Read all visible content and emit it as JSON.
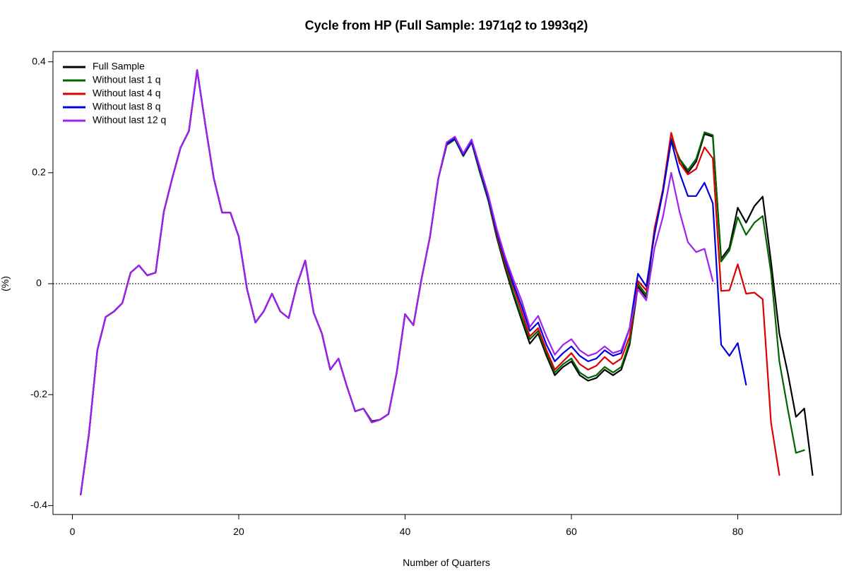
{
  "chart_data": {
    "type": "line",
    "title": "Cycle from HP (Full Sample: 1971q2 to 1993q2)",
    "xlabel": "Number of Quarters",
    "ylabel": "(%)",
    "xlim": [
      0,
      92
    ],
    "ylim": [
      -0.42,
      0.42
    ],
    "xticks": [
      0,
      20,
      40,
      60,
      80
    ],
    "yticks": [
      -0.4,
      -0.2,
      0,
      0.2,
      0.4
    ],
    "xtick_labels": [
      "0",
      "20",
      "40",
      "60",
      "80"
    ],
    "ytick_labels": [
      "-0.4",
      "-0.2",
      "0",
      "0.2",
      "0.4"
    ],
    "reference_line": {
      "y": 0,
      "style": "dotted"
    },
    "legend_position": "top-left",
    "series": [
      {
        "name": "Full Sample",
        "color": "#000000",
        "x_start": 1,
        "values": [
          -0.38,
          -0.27,
          -0.12,
          -0.06,
          -0.05,
          -0.035,
          0.02,
          0.033,
          0.015,
          0.02,
          0.13,
          0.19,
          0.245,
          0.275,
          0.385,
          0.285,
          0.19,
          0.128,
          0.128,
          0.085,
          -0.01,
          -0.07,
          -0.05,
          -0.018,
          -0.05,
          -0.062,
          -0.002,
          0.042,
          -0.052,
          -0.09,
          -0.155,
          -0.135,
          -0.185,
          -0.23,
          -0.225,
          -0.248,
          -0.245,
          -0.235,
          -0.16,
          -0.055,
          -0.075,
          0.01,
          0.085,
          0.19,
          0.25,
          0.26,
          0.23,
          0.255,
          0.2,
          0.15,
          0.085,
          0.03,
          -0.02,
          -0.065,
          -0.108,
          -0.09,
          -0.13,
          -0.165,
          -0.15,
          -0.14,
          -0.165,
          -0.175,
          -0.17,
          -0.155,
          -0.165,
          -0.155,
          -0.11,
          -0.005,
          -0.025,
          0.1,
          0.165,
          0.26,
          0.225,
          0.2,
          0.22,
          0.27,
          0.265,
          0.045,
          0.065,
          0.137,
          0.11,
          0.14,
          0.157,
          0.04,
          -0.09,
          -0.16,
          -0.24,
          -0.225,
          -0.345
        ]
      },
      {
        "name": "Without last 1 q",
        "color": "#006400",
        "x_start": 1,
        "values": [
          -0.38,
          -0.27,
          -0.12,
          -0.06,
          -0.05,
          -0.035,
          0.02,
          0.033,
          0.015,
          0.02,
          0.13,
          0.19,
          0.245,
          0.275,
          0.385,
          0.285,
          0.19,
          0.128,
          0.128,
          0.085,
          -0.01,
          -0.07,
          -0.05,
          -0.018,
          -0.05,
          -0.062,
          -0.002,
          0.042,
          -0.052,
          -0.09,
          -0.155,
          -0.135,
          -0.185,
          -0.23,
          -0.225,
          -0.25,
          -0.245,
          -0.235,
          -0.16,
          -0.055,
          -0.075,
          0.01,
          0.085,
          0.19,
          0.25,
          0.26,
          0.23,
          0.255,
          0.2,
          0.15,
          0.088,
          0.035,
          -0.015,
          -0.06,
          -0.1,
          -0.085,
          -0.125,
          -0.16,
          -0.145,
          -0.135,
          -0.16,
          -0.17,
          -0.165,
          -0.15,
          -0.16,
          -0.15,
          -0.105,
          0,
          -0.02,
          0.1,
          0.165,
          0.262,
          0.225,
          0.205,
          0.225,
          0.273,
          0.268,
          0.04,
          0.06,
          0.12,
          0.088,
          0.11,
          0.122,
          0.02,
          -0.14,
          -0.225,
          -0.305,
          -0.3
        ]
      },
      {
        "name": "Without last 4 q",
        "color": "#dd0000",
        "x_start": 1,
        "values": [
          -0.38,
          -0.27,
          -0.12,
          -0.06,
          -0.05,
          -0.035,
          0.02,
          0.033,
          0.015,
          0.02,
          0.13,
          0.19,
          0.245,
          0.275,
          0.385,
          0.285,
          0.19,
          0.128,
          0.128,
          0.085,
          -0.01,
          -0.07,
          -0.05,
          -0.018,
          -0.05,
          -0.062,
          -0.002,
          0.042,
          -0.052,
          -0.09,
          -0.155,
          -0.135,
          -0.185,
          -0.23,
          -0.225,
          -0.25,
          -0.245,
          -0.235,
          -0.16,
          -0.055,
          -0.075,
          0.01,
          0.085,
          0.19,
          0.252,
          0.262,
          0.232,
          0.256,
          0.205,
          0.155,
          0.092,
          0.04,
          -0.005,
          -0.05,
          -0.095,
          -0.08,
          -0.12,
          -0.155,
          -0.14,
          -0.125,
          -0.145,
          -0.155,
          -0.148,
          -0.132,
          -0.145,
          -0.135,
          -0.095,
          0.005,
          -0.012,
          0.1,
          0.17,
          0.272,
          0.218,
          0.197,
          0.207,
          0.246,
          0.226,
          -0.013,
          -0.012,
          0.035,
          -0.018,
          -0.016,
          -0.028,
          -0.25,
          -0.345
        ]
      },
      {
        "name": "Without last 8 q",
        "color": "#0000dd",
        "x_start": 1,
        "values": [
          -0.38,
          -0.27,
          -0.12,
          -0.06,
          -0.05,
          -0.035,
          0.02,
          0.033,
          0.015,
          0.02,
          0.13,
          0.19,
          0.245,
          0.275,
          0.385,
          0.285,
          0.19,
          0.128,
          0.128,
          0.085,
          -0.01,
          -0.07,
          -0.05,
          -0.018,
          -0.05,
          -0.062,
          -0.002,
          0.042,
          -0.052,
          -0.09,
          -0.155,
          -0.135,
          -0.185,
          -0.23,
          -0.225,
          -0.25,
          -0.245,
          -0.235,
          -0.16,
          -0.055,
          -0.075,
          0.01,
          0.085,
          0.19,
          0.252,
          0.262,
          0.232,
          0.256,
          0.205,
          0.155,
          0.095,
          0.045,
          0,
          -0.04,
          -0.085,
          -0.07,
          -0.11,
          -0.14,
          -0.125,
          -0.113,
          -0.13,
          -0.14,
          -0.135,
          -0.12,
          -0.13,
          -0.125,
          -0.08,
          0.018,
          -0.005,
          0.09,
          0.165,
          0.258,
          0.2,
          0.158,
          0.158,
          0.182,
          0.145,
          -0.11,
          -0.13,
          -0.107,
          -0.182
        ]
      },
      {
        "name": "Without last 12 q",
        "color": "#a020f0",
        "x_start": 1,
        "values": [
          -0.38,
          -0.27,
          -0.12,
          -0.06,
          -0.05,
          -0.035,
          0.02,
          0.033,
          0.015,
          0.02,
          0.13,
          0.19,
          0.245,
          0.275,
          0.385,
          0.285,
          0.19,
          0.128,
          0.128,
          0.085,
          -0.01,
          -0.07,
          -0.05,
          -0.018,
          -0.05,
          -0.062,
          -0.002,
          0.042,
          -0.052,
          -0.09,
          -0.155,
          -0.135,
          -0.185,
          -0.23,
          -0.225,
          -0.25,
          -0.245,
          -0.235,
          -0.16,
          -0.055,
          -0.075,
          0.01,
          0.085,
          0.19,
          0.255,
          0.265,
          0.235,
          0.26,
          0.21,
          0.16,
          0.1,
          0.05,
          0.008,
          -0.03,
          -0.078,
          -0.058,
          -0.095,
          -0.128,
          -0.11,
          -0.1,
          -0.12,
          -0.13,
          -0.125,
          -0.113,
          -0.125,
          -0.12,
          -0.08,
          -0.01,
          -0.03,
          0.065,
          0.12,
          0.2,
          0.13,
          0.075,
          0.057,
          0.063,
          0.005
        ]
      }
    ]
  }
}
